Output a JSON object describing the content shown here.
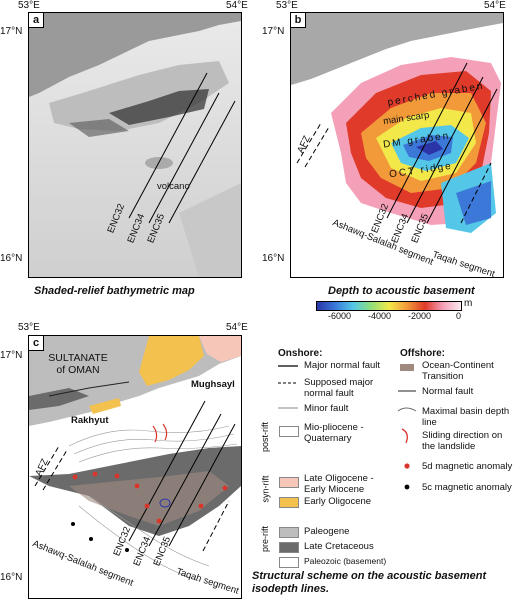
{
  "coords": {
    "lon_left": "53°E",
    "lon_right": "54°E",
    "lat_top": "17°N",
    "lat_bottom": "16°N"
  },
  "panels": {
    "a": {
      "label": "a",
      "volcano": "volcano",
      "profiles": [
        "ENC32",
        "ENC34",
        "ENC35"
      ],
      "caption": "Shaded-relief bathymetric map"
    },
    "b": {
      "label": "b",
      "perched_graben": "perched graben",
      "main_scarp": "main scarp",
      "dm_graben": "DM graben",
      "oct_ridge": "OCT ridge",
      "afz": "AFZ",
      "ashawq": "Ashawq-Salalah segment",
      "taqah": "Taqah segment",
      "profiles": [
        "ENC32",
        "ENC34",
        "ENC35"
      ],
      "caption": "Depth to acoustic basement"
    },
    "c": {
      "label": "c",
      "country": "SULTANATE of OMAN",
      "rakhyut": "Rakhyut",
      "mughsayl": "Mughsayl",
      "afz": "AFZ",
      "ashawq": "Ashawq-Salalah segment",
      "taqah": "Taqah segment",
      "profiles": [
        "ENC32",
        "ENC34",
        "ENC35"
      ],
      "caption": "Structural scheme on the acoustic basement isodepth lines."
    }
  },
  "colorbar": {
    "ticks": [
      "-6000",
      "-4000",
      "-2000",
      "0"
    ],
    "unit": "m",
    "stops": [
      "#2b35a8",
      "#3b78d8",
      "#54c7e8",
      "#8fe07a",
      "#f2e84a",
      "#f29a3a",
      "#e03a2a",
      "#f4a0b8",
      "#fce9ee"
    ]
  },
  "legend": {
    "onshore": "Onshore:",
    "offshore": "Offshore:",
    "post_rift": "post-rift",
    "syn_rift": "syn-rift",
    "pre_rift": "pre-rift",
    "items_left": [
      {
        "label": "Major normal fault"
      },
      {
        "label": "Supposed major normal fault"
      },
      {
        "label": "Minor fault"
      },
      {
        "label": "Mio-pliocene - Quaternary",
        "color": "#ffffff"
      },
      {
        "label": "Late Oligocene - Early Miocene",
        "color": "#f6c7b8"
      },
      {
        "label": "Early Oligocene",
        "color": "#f2c14e"
      },
      {
        "label": "Paleogene",
        "color": "#bdbdbd"
      },
      {
        "label": "Late Cretaceous",
        "color": "#6b6b6b"
      },
      {
        "label": "Paleozoic (basement)",
        "color": "#ffffff"
      }
    ],
    "items_right": [
      {
        "label": "Ocean-Continent Transition",
        "color": "#a08a80"
      },
      {
        "label": "Normal fault"
      },
      {
        "label": "Maximal basin depth line"
      },
      {
        "label": "Sliding direction on the landslide"
      },
      {
        "label": "5d magnetic anomaly",
        "color": "#d9362b"
      },
      {
        "label": "5c magnetic anomaly",
        "color": "#000000"
      }
    ]
  }
}
